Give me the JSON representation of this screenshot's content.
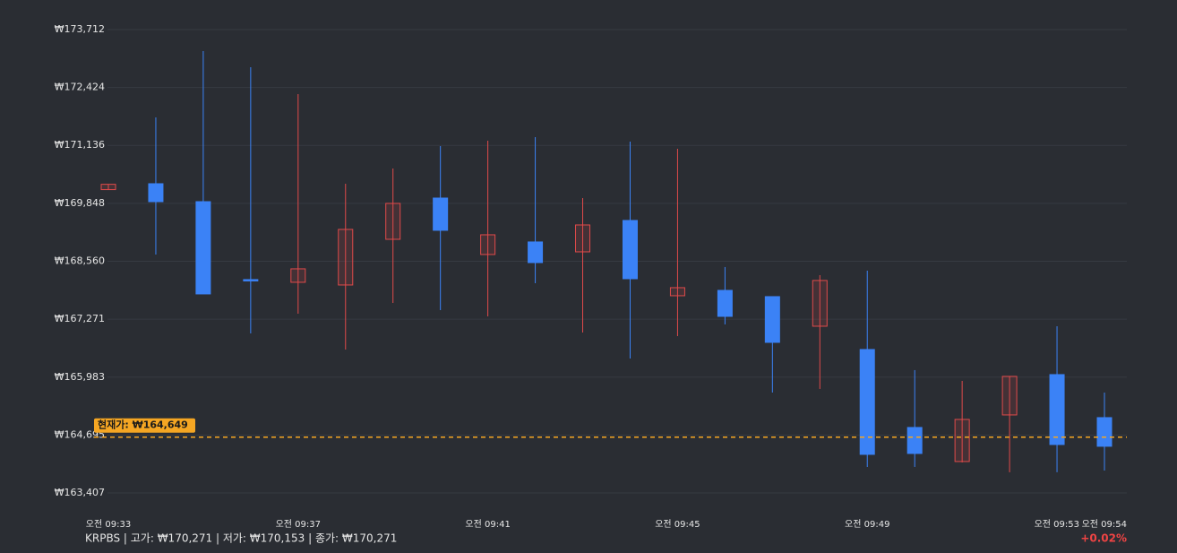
{
  "chart_data": {
    "type": "candlestick",
    "categories": [
      "오전 09:33",
      null,
      null,
      null,
      "오전 09:37",
      null,
      null,
      null,
      "오전 09:41",
      null,
      null,
      null,
      "오전 09:45",
      null,
      null,
      null,
      "오전 09:49",
      null,
      null,
      null,
      "오전 09:53",
      "오전 09:54"
    ],
    "open": [
      170153,
      170284,
      169885,
      168152,
      168092,
      168032,
      169048,
      169965,
      168710,
      168989,
      168769,
      169467,
      167793,
      167912,
      167773,
      167115,
      166597,
      164863,
      164106,
      165142,
      166039,
      165082
    ],
    "high": [
      170271,
      171759,
      173234,
      172875,
      172277,
      170284,
      170623,
      171121,
      171241,
      171320,
      169965,
      171221,
      171061,
      168431,
      167773,
      168251,
      168351,
      166139,
      165899,
      165999,
      167115,
      165640
    ],
    "low": [
      170153,
      168710,
      167833,
      166956,
      167394,
      166597,
      167633,
      167474,
      167334,
      168072,
      166976,
      166398,
      166896,
      167155,
      165640,
      165720,
      163986,
      163986,
      164086,
      163867,
      163867,
      163906
    ],
    "close": [
      170271,
      169885,
      167833,
      168152,
      168391,
      169268,
      169846,
      169248,
      169148,
      168530,
      169367,
      168171,
      167972,
      167334,
      166756,
      168132,
      164265,
      164285,
      165042,
      165999,
      164484,
      164445
    ],
    "up_color": "#e04a4a",
    "down_color": "#3b82f6",
    "ylim": [
      163407,
      173712
    ],
    "yticks": [
      {
        "value": 163407,
        "label": "₩163,407"
      },
      {
        "value": 164695,
        "label": "₩164,695"
      },
      {
        "value": 165983,
        "label": "₩165,983"
      },
      {
        "value": 167271,
        "label": "₩167,271"
      },
      {
        "value": 168560,
        "label": "₩168,560"
      },
      {
        "value": 169848,
        "label": "₩169,848"
      },
      {
        "value": 171136,
        "label": "₩171,136"
      },
      {
        "value": 172424,
        "label": "₩172,424"
      },
      {
        "value": 173712,
        "label": "₩173,712"
      }
    ],
    "grid": true,
    "current_price": 164649,
    "current_price_label": "현재가: ₩164,649",
    "current_color": "#f5a623",
    "footer": "KRPBS | 고가: ₩170,271 | 저가: ₩170,153 | 종가: ₩170,271",
    "change": "+0.02%"
  }
}
